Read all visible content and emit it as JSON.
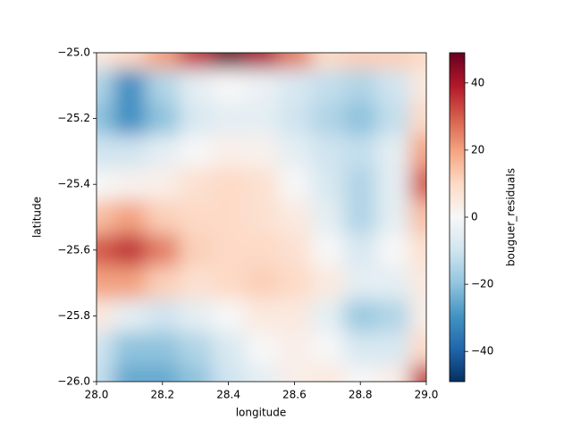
{
  "chart_data": {
    "type": "heatmap",
    "x_label": "longitude",
    "y_label": "latitude",
    "colorbar_label": "bouguer_residuals",
    "colormap": "RdBu_r",
    "x": [
      28.0,
      28.1,
      28.2,
      28.3,
      28.4,
      28.5,
      28.6,
      28.7,
      28.8,
      28.9,
      29.0
    ],
    "y": [
      -25.0,
      -25.1,
      -25.2,
      -25.3,
      -25.4,
      -25.5,
      -25.6,
      -25.7,
      -25.8,
      -25.9,
      -26.0
    ],
    "z": [
      [
        5,
        10,
        20,
        35,
        48,
        40,
        25,
        10,
        12,
        12,
        10
      ],
      [
        -15,
        -30,
        -15,
        -5,
        0,
        -3,
        -8,
        -12,
        -15,
        -10,
        5
      ],
      [
        -20,
        -30,
        -20,
        -8,
        -5,
        -5,
        -10,
        -15,
        -20,
        -12,
        10
      ],
      [
        -10,
        -10,
        -5,
        0,
        3,
        2,
        -5,
        -10,
        -12,
        -5,
        20
      ],
      [
        0,
        2,
        3,
        8,
        10,
        8,
        0,
        -8,
        -15,
        -5,
        30
      ],
      [
        15,
        20,
        12,
        10,
        10,
        8,
        5,
        -5,
        -15,
        -5,
        15
      ],
      [
        30,
        35,
        25,
        12,
        10,
        10,
        8,
        0,
        -8,
        0,
        8
      ],
      [
        20,
        20,
        12,
        8,
        10,
        12,
        10,
        5,
        -5,
        -5,
        5
      ],
      [
        5,
        -5,
        -10,
        -5,
        0,
        5,
        5,
        -5,
        -18,
        -15,
        3
      ],
      [
        -10,
        -20,
        -20,
        -15,
        -8,
        0,
        3,
        0,
        -8,
        -8,
        10
      ],
      [
        -12,
        -25,
        -25,
        -20,
        -10,
        -5,
        3,
        5,
        0,
        3,
        35
      ]
    ],
    "xlim": [
      28.0,
      29.0
    ],
    "ylim": [
      -26.0,
      -25.0
    ],
    "clim": [
      -49,
      49
    ],
    "xticks": [
      {
        "value": 28.0,
        "label": "28.0"
      },
      {
        "value": 28.2,
        "label": "28.2"
      },
      {
        "value": 28.4,
        "label": "28.4"
      },
      {
        "value": 28.6,
        "label": "28.6"
      },
      {
        "value": 28.8,
        "label": "28.8"
      },
      {
        "value": 29.0,
        "label": "29.0"
      }
    ],
    "yticks": [
      {
        "value": -26.0,
        "label": "−26.0"
      },
      {
        "value": -25.8,
        "label": "−25.8"
      },
      {
        "value": -25.6,
        "label": "−25.6"
      },
      {
        "value": -25.4,
        "label": "−25.4"
      },
      {
        "value": -25.2,
        "label": "−25.2"
      },
      {
        "value": -25.0,
        "label": "−25.0"
      }
    ],
    "cticks": [
      {
        "value": -40,
        "label": "−40"
      },
      {
        "value": -20,
        "label": "−20"
      },
      0,
      20,
      40
    ]
  }
}
